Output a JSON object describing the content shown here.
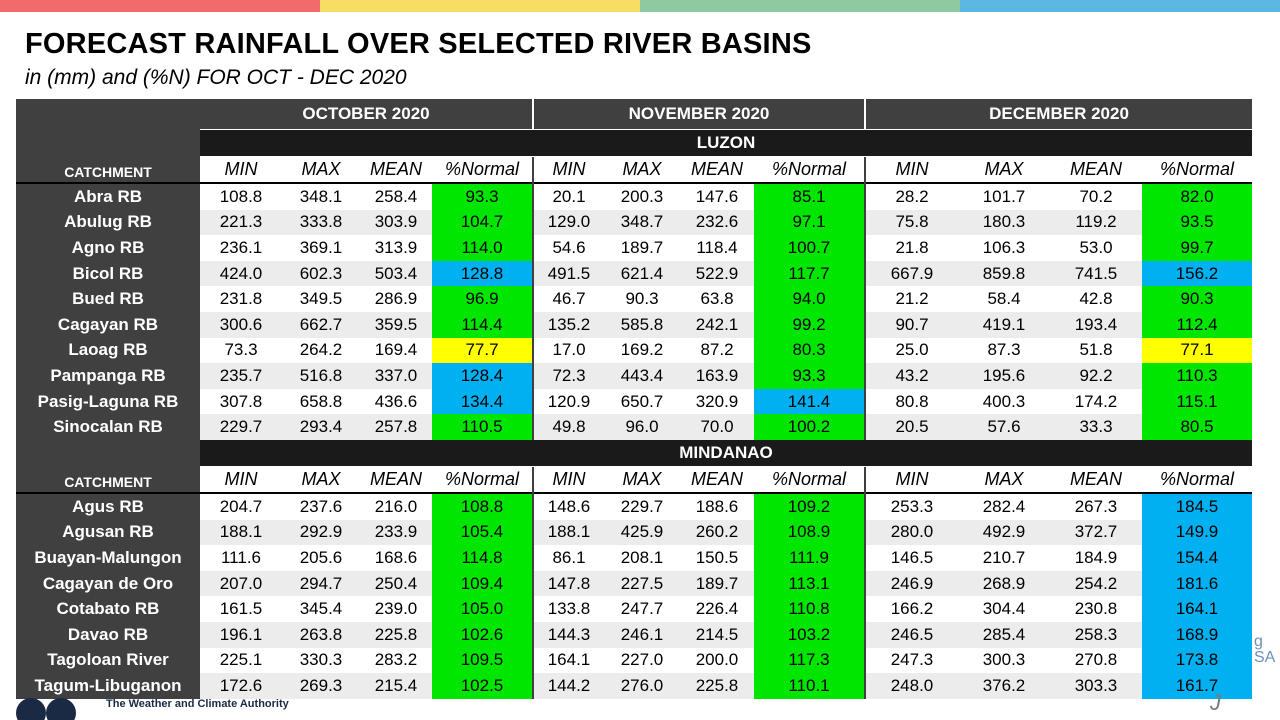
{
  "accent_bar_colors": [
    "#f26b6b",
    "#f7dd63",
    "#8ec9a0",
    "#5bb8e0"
  ],
  "title": "FORECAST RAINFALL OVER SELECTED RIVER BASINS",
  "subtitle": "in (mm) and (%N) FOR  OCT - DEC 2020",
  "footer_text": "The Weather and Climate Authority",
  "month_headers": [
    "OCTOBER 2020",
    "NOVEMBER 2020",
    "DECEMBER 2020"
  ],
  "catchment_label": "CATCHMENT",
  "columns": [
    "MIN",
    "MAX",
    "MEAN",
    "%Normal"
  ],
  "category_colors": {
    "green": "#00e600",
    "blue": "#00b0f0",
    "yellow": "#ffff00"
  },
  "regions": [
    {
      "name": "LUZON",
      "rows": [
        {
          "name": "Abra RB",
          "oct": [
            "108.8",
            "348.1",
            "258.4",
            "93.3"
          ],
          "nov": [
            "20.1",
            "200.3",
            "147.6",
            "85.1"
          ],
          "dec": [
            "28.2",
            "101.7",
            "70.2",
            "82.0"
          ],
          "colors": [
            "green",
            "green",
            "green"
          ]
        },
        {
          "name": "Abulug RB",
          "oct": [
            "221.3",
            "333.8",
            "303.9",
            "104.7"
          ],
          "nov": [
            "129.0",
            "348.7",
            "232.6",
            "97.1"
          ],
          "dec": [
            "75.8",
            "180.3",
            "119.2",
            "93.5"
          ],
          "colors": [
            "green",
            "green",
            "green"
          ]
        },
        {
          "name": "Agno RB",
          "oct": [
            "236.1",
            "369.1",
            "313.9",
            "114.0"
          ],
          "nov": [
            "54.6",
            "189.7",
            "118.4",
            "100.7"
          ],
          "dec": [
            "21.8",
            "106.3",
            "53.0",
            "99.7"
          ],
          "colors": [
            "green",
            "green",
            "green"
          ]
        },
        {
          "name": "Bicol RB",
          "oct": [
            "424.0",
            "602.3",
            "503.4",
            "128.8"
          ],
          "nov": [
            "491.5",
            "621.4",
            "522.9",
            "117.7"
          ],
          "dec": [
            "667.9",
            "859.8",
            "741.5",
            "156.2"
          ],
          "colors": [
            "blue",
            "green",
            "blue"
          ]
        },
        {
          "name": "Bued RB",
          "oct": [
            "231.8",
            "349.5",
            "286.9",
            "96.9"
          ],
          "nov": [
            "46.7",
            "90.3",
            "63.8",
            "94.0"
          ],
          "dec": [
            "21.2",
            "58.4",
            "42.8",
            "90.3"
          ],
          "colors": [
            "green",
            "green",
            "green"
          ]
        },
        {
          "name": "Cagayan RB",
          "oct": [
            "300.6",
            "662.7",
            "359.5",
            "114.4"
          ],
          "nov": [
            "135.2",
            "585.8",
            "242.1",
            "99.2"
          ],
          "dec": [
            "90.7",
            "419.1",
            "193.4",
            "112.4"
          ],
          "colors": [
            "green",
            "green",
            "green"
          ]
        },
        {
          "name": "Laoag RB",
          "oct": [
            "73.3",
            "264.2",
            "169.4",
            "77.7"
          ],
          "nov": [
            "17.0",
            "169.2",
            "87.2",
            "80.3"
          ],
          "dec": [
            "25.0",
            "87.3",
            "51.8",
            "77.1"
          ],
          "colors": [
            "yellow",
            "green",
            "yellow"
          ]
        },
        {
          "name": "Pampanga RB",
          "oct": [
            "235.7",
            "516.8",
            "337.0",
            "128.4"
          ],
          "nov": [
            "72.3",
            "443.4",
            "163.9",
            "93.3"
          ],
          "dec": [
            "43.2",
            "195.6",
            "92.2",
            "110.3"
          ],
          "colors": [
            "blue",
            "green",
            "green"
          ]
        },
        {
          "name": "Pasig-Laguna RB",
          "oct": [
            "307.8",
            "658.8",
            "436.6",
            "134.4"
          ],
          "nov": [
            "120.9",
            "650.7",
            "320.9",
            "141.4"
          ],
          "dec": [
            "80.8",
            "400.3",
            "174.2",
            "115.1"
          ],
          "colors": [
            "blue",
            "blue",
            "green"
          ]
        },
        {
          "name": "Sinocalan RB",
          "oct": [
            "229.7",
            "293.4",
            "257.8",
            "110.5"
          ],
          "nov": [
            "49.8",
            "96.0",
            "70.0",
            "100.2"
          ],
          "dec": [
            "20.5",
            "57.6",
            "33.3",
            "80.5"
          ],
          "colors": [
            "green",
            "green",
            "green"
          ]
        }
      ]
    },
    {
      "name": "MINDANAO",
      "rows": [
        {
          "name": "Agus RB",
          "oct": [
            "204.7",
            "237.6",
            "216.0",
            "108.8"
          ],
          "nov": [
            "148.6",
            "229.7",
            "188.6",
            "109.2"
          ],
          "dec": [
            "253.3",
            "282.4",
            "267.3",
            "184.5"
          ],
          "colors": [
            "green",
            "green",
            "blue"
          ]
        },
        {
          "name": "Agusan RB",
          "oct": [
            "188.1",
            "292.9",
            "233.9",
            "105.4"
          ],
          "nov": [
            "188.1",
            "425.9",
            "260.2",
            "108.9"
          ],
          "dec": [
            "280.0",
            "492.9",
            "372.7",
            "149.9"
          ],
          "colors": [
            "green",
            "green",
            "blue"
          ]
        },
        {
          "name": "Buayan-Malungon",
          "oct": [
            "111.6",
            "205.6",
            "168.6",
            "114.8"
          ],
          "nov": [
            "86.1",
            "208.1",
            "150.5",
            "111.9"
          ],
          "dec": [
            "146.5",
            "210.7",
            "184.9",
            "154.4"
          ],
          "colors": [
            "green",
            "green",
            "blue"
          ]
        },
        {
          "name": "Cagayan de Oro",
          "oct": [
            "207.0",
            "294.7",
            "250.4",
            "109.4"
          ],
          "nov": [
            "147.8",
            "227.5",
            "189.7",
            "113.1"
          ],
          "dec": [
            "246.9",
            "268.9",
            "254.2",
            "181.6"
          ],
          "colors": [
            "green",
            "green",
            "blue"
          ]
        },
        {
          "name": "Cotabato RB",
          "oct": [
            "161.5",
            "345.4",
            "239.0",
            "105.0"
          ],
          "nov": [
            "133.8",
            "247.7",
            "226.4",
            "110.8"
          ],
          "dec": [
            "166.2",
            "304.4",
            "230.8",
            "164.1"
          ],
          "colors": [
            "green",
            "green",
            "blue"
          ]
        },
        {
          "name": "Davao RB",
          "oct": [
            "196.1",
            "263.8",
            "225.8",
            "102.6"
          ],
          "nov": [
            "144.3",
            "246.1",
            "214.5",
            "103.2"
          ],
          "dec": [
            "246.5",
            "285.4",
            "258.3",
            "168.9"
          ],
          "colors": [
            "green",
            "green",
            "blue"
          ]
        },
        {
          "name": "Tagoloan River",
          "oct": [
            "225.1",
            "330.3",
            "283.2",
            "109.5"
          ],
          "nov": [
            "164.1",
            "227.0",
            "200.0",
            "117.3"
          ],
          "dec": [
            "247.3",
            "300.3",
            "270.8",
            "173.8"
          ],
          "colors": [
            "green",
            "green",
            "blue"
          ]
        },
        {
          "name": "Tagum-Libuganon",
          "oct": [
            "172.6",
            "269.3",
            "215.4",
            "102.5"
          ],
          "nov": [
            "144.2",
            "276.0",
            "225.8",
            "110.1"
          ],
          "dec": [
            "248.0",
            "376.2",
            "303.3",
            "161.7"
          ],
          "colors": [
            "green",
            "green",
            "blue"
          ]
        }
      ]
    }
  ]
}
